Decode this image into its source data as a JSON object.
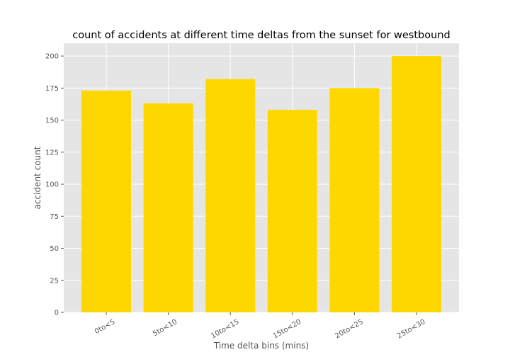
{
  "chart_data": {
    "type": "bar",
    "title": "count of accidents at different time deltas from the sunset for westbound",
    "xlabel": "Time delta bins (mins)",
    "ylabel": "accident count",
    "categories": [
      "0to<5",
      "5to<10",
      "10to<15",
      "15to<20",
      "20to<25",
      "25to<30"
    ],
    "values": [
      173,
      163,
      182,
      158,
      175,
      200
    ],
    "ylim": [
      0,
      210
    ],
    "yticks": [
      0,
      25,
      50,
      75,
      100,
      125,
      150,
      175,
      200
    ],
    "grid": true,
    "colors": {
      "bar": "#ffd700",
      "plot_background": "#e5e5e5",
      "grid": "#ffffff",
      "tick_text": "#555555"
    }
  }
}
